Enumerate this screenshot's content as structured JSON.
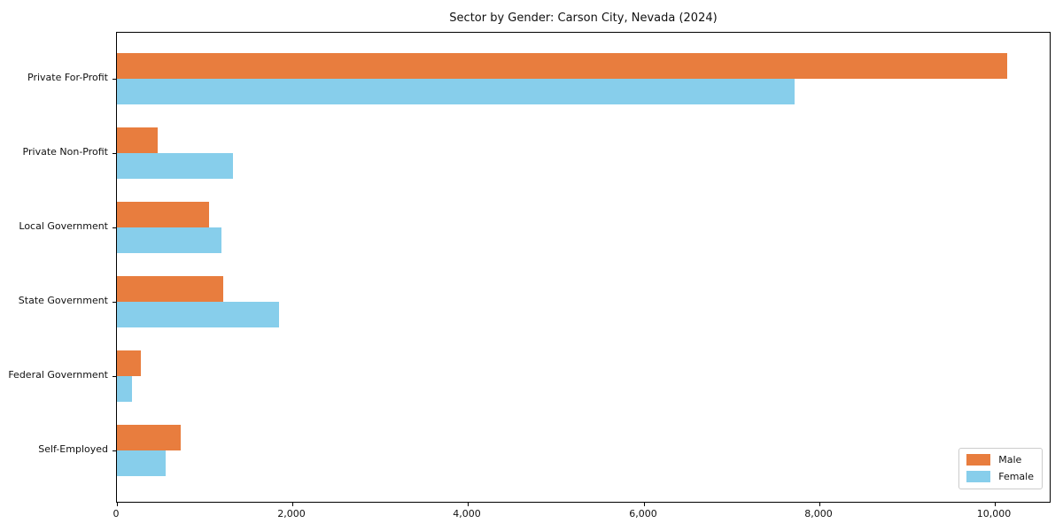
{
  "chart_data": {
    "type": "bar",
    "orientation": "horizontal",
    "title": "Sector by Gender: Carson City, Nevada (2024)",
    "categories": [
      "Private For-Profit",
      "Private Non-Profit",
      "Local Government",
      "State Government",
      "Federal Government",
      "Self-Employed"
    ],
    "series": [
      {
        "name": "Male",
        "color": "#e87d3e",
        "values": [
          10140,
          460,
          1050,
          1210,
          275,
          725
        ]
      },
      {
        "name": "Female",
        "color": "#87ceeb",
        "values": [
          7720,
          1320,
          1190,
          1845,
          175,
          555
        ]
      }
    ],
    "xlabel": "",
    "ylabel": "",
    "xlim": [
      0,
      10645
    ],
    "x_ticks": [
      0,
      2000,
      4000,
      6000,
      8000,
      10000
    ],
    "x_tick_labels": [
      "0",
      "2,000",
      "4,000",
      "6,000",
      "8,000",
      "10,000"
    ],
    "grid": false,
    "legend": {
      "position": "lower right",
      "entries": [
        "Male",
        "Female"
      ]
    }
  }
}
